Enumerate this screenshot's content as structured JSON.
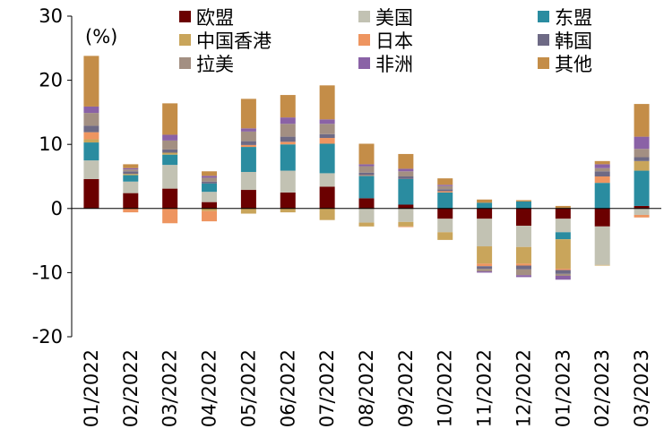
{
  "chart_data": {
    "type": "bar",
    "stacked": true,
    "unit_label": "(%)",
    "ylim": [
      -20,
      30
    ],
    "yticks": [
      -20,
      -10,
      0,
      10,
      20,
      30
    ],
    "grid": false,
    "legend_position": "top",
    "categories": [
      "01/2022",
      "02/2022",
      "03/2022",
      "04/2022",
      "05/2022",
      "06/2022",
      "07/2022",
      "08/2022",
      "09/2022",
      "10/2022",
      "11/2022",
      "12/2022",
      "01/2023",
      "02/2023",
      "03/2023"
    ],
    "series": [
      {
        "name": "欧盟",
        "color": "#6b0000",
        "values": [
          4.6,
          2.4,
          3.1,
          1.0,
          2.9,
          2.5,
          3.4,
          1.6,
          0.6,
          -1.6,
          -1.6,
          -2.7,
          -1.6,
          -2.8,
          0.4
        ]
      },
      {
        "name": "美国",
        "color": "#c2c2b3",
        "values": [
          2.9,
          1.8,
          3.7,
          1.6,
          2.8,
          3.4,
          2.1,
          -2.2,
          -2.1,
          -2.1,
          -4.3,
          -3.3,
          -2.1,
          -6.0,
          -1.0
        ]
      },
      {
        "name": "东盟",
        "color": "#2a8ca0",
        "values": [
          2.8,
          1.0,
          1.6,
          1.3,
          3.9,
          4.1,
          4.6,
          3.5,
          4.0,
          2.5,
          0.9,
          1.1,
          -1.1,
          4.0,
          5.5
        ]
      },
      {
        "name": "中国香港",
        "color": "#c9a55b",
        "values": [
          0.5,
          0.2,
          0.3,
          -0.4,
          -0.8,
          -0.6,
          -1.8,
          -0.6,
          -0.7,
          -1.2,
          -2.7,
          -2.6,
          -4.6,
          -0.1,
          1.5
        ]
      },
      {
        "name": "日本",
        "color": "#ee9560",
        "values": [
          1.1,
          -0.6,
          -2.3,
          -1.6,
          0.3,
          0.4,
          0.9,
          0.1,
          -0.1,
          0.2,
          -0.4,
          -0.3,
          -0.2,
          1.0,
          -0.4
        ]
      },
      {
        "name": "韩国",
        "color": "#6e6a85",
        "values": [
          1.0,
          0.4,
          0.5,
          0.3,
          0.6,
          0.8,
          0.6,
          0.4,
          0.4,
          0.3,
          -0.4,
          -0.6,
          -0.6,
          0.8,
          0.6
        ]
      },
      {
        "name": "拉美",
        "color": "#a38f82",
        "values": [
          2.0,
          0.3,
          1.4,
          0.6,
          1.5,
          2.0,
          1.6,
          1.0,
          0.8,
          0.5,
          -0.4,
          -0.9,
          -0.3,
          0.5,
          1.3
        ]
      },
      {
        "name": "非洲",
        "color": "#8a62a6",
        "values": [
          1.0,
          0.2,
          0.9,
          0.3,
          0.5,
          1.0,
          0.7,
          0.3,
          0.4,
          0.2,
          -0.2,
          -0.3,
          -0.6,
          0.6,
          1.9
        ]
      },
      {
        "name": "其他",
        "color": "#c48d48",
        "values": [
          7.9,
          0.6,
          4.9,
          0.7,
          4.6,
          3.5,
          5.3,
          3.2,
          2.3,
          1.0,
          0.5,
          0.2,
          0.4,
          0.5,
          5.1
        ]
      }
    ]
  }
}
